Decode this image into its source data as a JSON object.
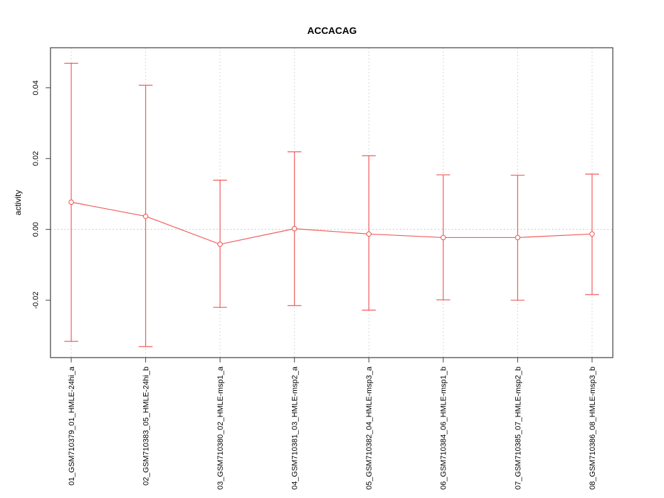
{
  "chart_data": {
    "type": "line",
    "subtype": "means-with-error-bars",
    "title": "ACCACAG",
    "xlabel": "",
    "ylabel": "activity",
    "categories": [
      "01_GSM710379_01_HMLE-24hi_a",
      "02_GSM710383_05_HMLE-24hi_b",
      "03_GSM710380_02_HMLE-msp1_a",
      "04_GSM710381_03_HMLE-msp2_a",
      "05_GSM710382_04_HMLE-msp3_a",
      "06_GSM710384_06_HMLE-msp1_b",
      "07_GSM710385_07_HMLE-msp2_b",
      "08_GSM710386_08_HMLE-msp3_b"
    ],
    "series": [
      {
        "name": "mean activity",
        "values": [
          0.0077,
          0.0037,
          -0.0042,
          0.0002,
          -0.0013,
          -0.0023,
          -0.0023,
          -0.0013
        ]
      }
    ],
    "error_upper": [
      0.0469,
      0.0407,
      0.0139,
      0.0219,
      0.0208,
      0.0154,
      0.0153,
      0.0156
    ],
    "error_lower": [
      -0.0316,
      -0.0331,
      -0.022,
      -0.0215,
      -0.0228,
      -0.0199,
      -0.02,
      -0.0184
    ],
    "yticks": [
      -0.02,
      0.0,
      0.02,
      0.04
    ],
    "ytick_labels": [
      "-0.02",
      "0.00",
      "0.02",
      "0.04"
    ],
    "ylim": [
      -0.0362,
      0.0513
    ],
    "grid": "dotted vertical line at each category; dotted horizontal line at y=0",
    "legend": "none",
    "x_tick_label_rotation": -90,
    "colors": {
      "series": "#ef5a5a",
      "grid": "#d6d6d6",
      "zero_line": "#c9c9c9",
      "box": "#3d3d3d",
      "text": "#000000",
      "background": "#ffffff"
    }
  }
}
